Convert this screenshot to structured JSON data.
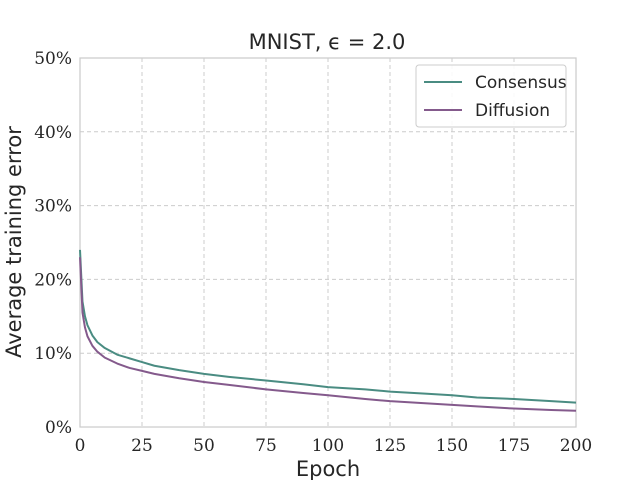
{
  "chart_data": {
    "type": "line",
    "title": "MNIST, ϵ = 2.0",
    "xlabel": "Epoch",
    "ylabel": "Average training error",
    "xlim": [
      0,
      200
    ],
    "ylim": [
      0,
      50
    ],
    "xticks": [
      0,
      25,
      50,
      75,
      100,
      125,
      150,
      175,
      200
    ],
    "yticks": [
      0,
      10,
      20,
      30,
      40,
      50
    ],
    "ytick_labels": [
      "0%",
      "10%",
      "20%",
      "30%",
      "40%",
      "50%"
    ],
    "xtick_labels": [
      "0",
      "25",
      "50",
      "75",
      "100",
      "125",
      "150",
      "175",
      "200"
    ],
    "grid": true,
    "legend_position": "top-right",
    "series": [
      {
        "name": "Consensus",
        "color": "#4a8c82",
        "x": [
          0,
          1,
          2,
          3,
          5,
          7,
          10,
          15,
          20,
          25,
          30,
          40,
          50,
          60,
          75,
          90,
          100,
          115,
          125,
          140,
          150,
          160,
          175,
          190,
          200
        ],
        "values": [
          24.0,
          17.0,
          15.0,
          13.8,
          12.4,
          11.5,
          10.7,
          9.8,
          9.3,
          8.8,
          8.3,
          7.7,
          7.2,
          6.8,
          6.3,
          5.8,
          5.4,
          5.1,
          4.8,
          4.5,
          4.3,
          4.0,
          3.8,
          3.5,
          3.3
        ]
      },
      {
        "name": "Diffusion",
        "color": "#845a8c",
        "x": [
          0,
          1,
          2,
          3,
          5,
          7,
          10,
          15,
          20,
          25,
          30,
          40,
          50,
          60,
          75,
          90,
          100,
          115,
          125,
          140,
          150,
          160,
          175,
          190,
          200
        ],
        "values": [
          23.0,
          15.5,
          13.5,
          12.3,
          11.0,
          10.2,
          9.4,
          8.6,
          8.0,
          7.6,
          7.2,
          6.6,
          6.1,
          5.7,
          5.1,
          4.6,
          4.3,
          3.8,
          3.5,
          3.2,
          3.0,
          2.8,
          2.5,
          2.3,
          2.2
        ]
      }
    ]
  }
}
